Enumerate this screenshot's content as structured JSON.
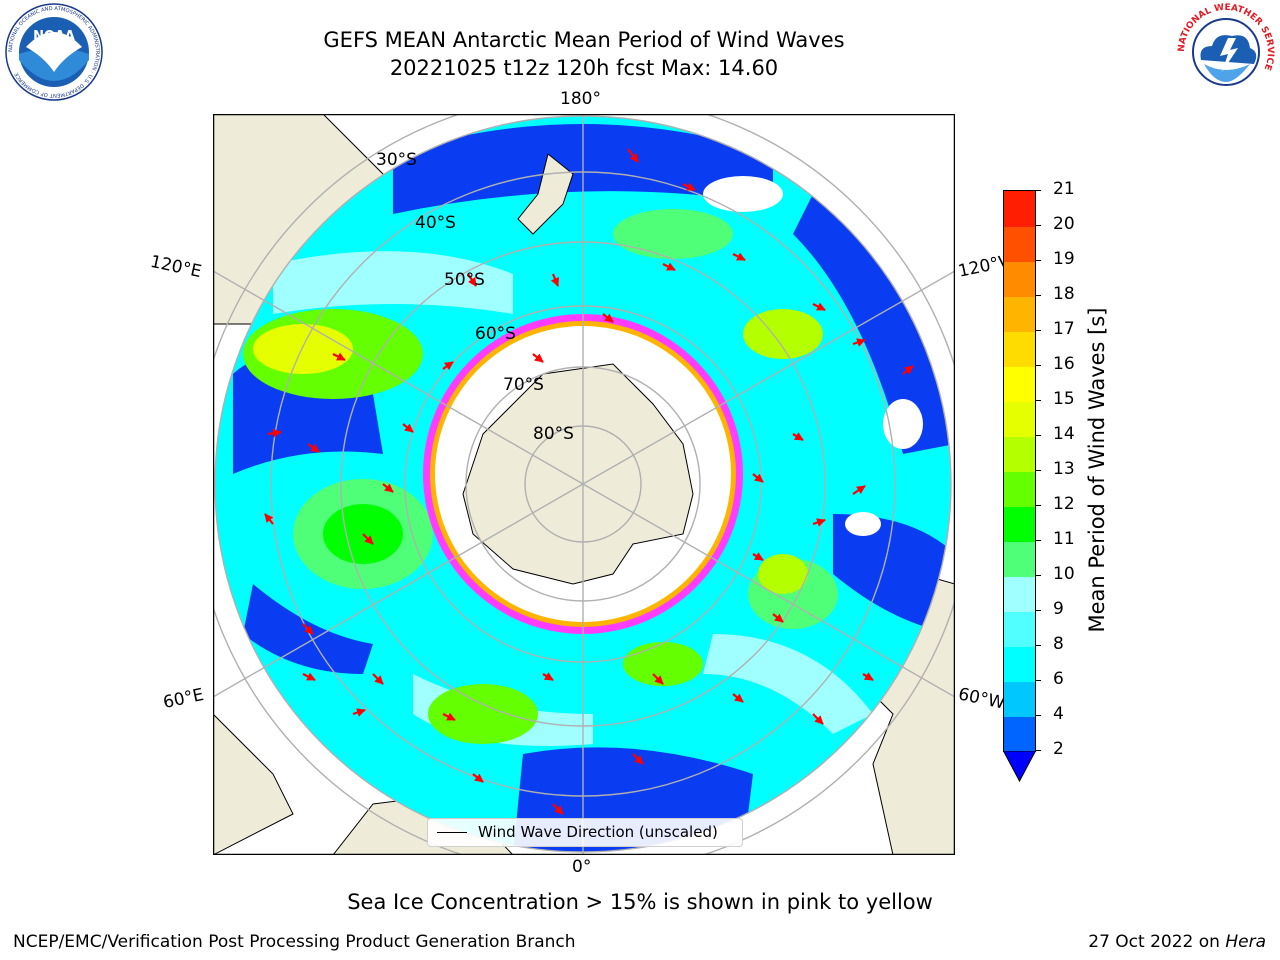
{
  "header": {
    "title_line1": "GEFS MEAN Antarctic Mean Period of Wind Waves",
    "title_line2": "20221025 t12z 120h fcst   Max: 14.60"
  },
  "logos": {
    "noaa_text": "NOAA",
    "noaa_ring_text": "NATIONAL OCEANIC AND ATMOSPHERIC ADMINISTRATION · U.S. DEPARTMENT OF COMMERCE",
    "nws_ring_text": "NATIONAL WEATHER SERVICE"
  },
  "map": {
    "projection": "south-polar-stereographic",
    "lon_labels": {
      "top": "180°",
      "bottom": "0°",
      "left_upper": "120°E",
      "left_lower": "60°E",
      "right_upper": "120°W",
      "right_lower": "60°W"
    },
    "lat_labels": [
      "30°S",
      "40°S",
      "50°S",
      "60°S",
      "70°S",
      "80°S"
    ],
    "legend_label": "Wind Wave Direction (unscaled)",
    "colors": {
      "land": "#eeecd9",
      "ocean_low": "#0a3cf2",
      "ocean_mid": "#00e5ff",
      "ice_edge": "#ff3cff"
    }
  },
  "colorbar": {
    "label": "Mean Period of Wind Waves [s]",
    "ticks": [
      "2",
      "4",
      "6",
      "8",
      "9",
      "10",
      "11",
      "12",
      "13",
      "14",
      "15",
      "16",
      "17",
      "18",
      "19",
      "20",
      "21"
    ],
    "colors": [
      "#0064ff",
      "#00c8ff",
      "#00ffff",
      "#50ffff",
      "#a0ffff",
      "#50ff78",
      "#00ff00",
      "#64ff00",
      "#b4ff00",
      "#e6ff00",
      "#ffff00",
      "#ffdc00",
      "#ffb400",
      "#ff8c00",
      "#ff5000",
      "#ff1e00"
    ],
    "extend_color": "#0000ff"
  },
  "notes": {
    "sea_ice": "Sea Ice Concentration > 15% is shown in pink to yellow"
  },
  "footer": {
    "left": "NCEP/EMC/Verification Post Processing Product Generation Branch",
    "right_date": "27 Oct 2022 on ",
    "right_machine": "Hera"
  }
}
